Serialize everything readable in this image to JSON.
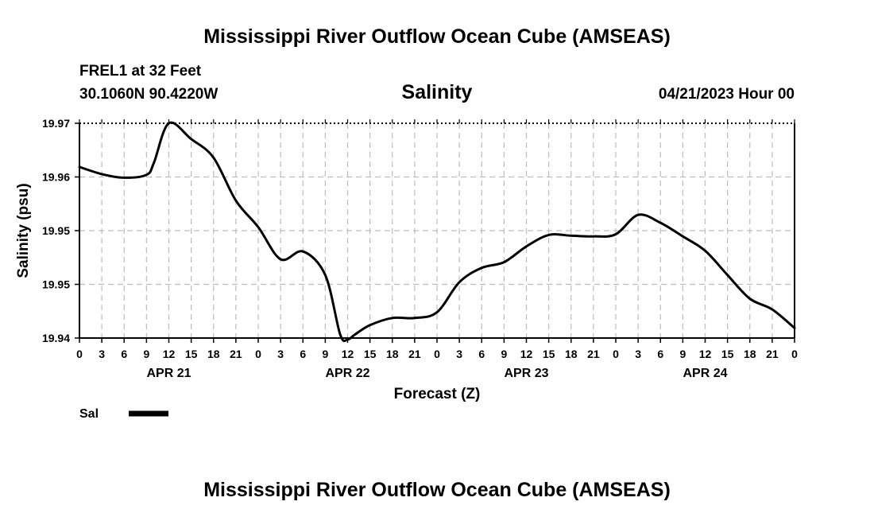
{
  "header": {
    "title": "Mississippi River Outflow Ocean Cube (AMSEAS)",
    "station_line": "FREL1 at 32 Feet",
    "location_line": "30.1060N  90.4220W",
    "variable_title": "Salinity",
    "datetime_line": "04/21/2023 Hour 00"
  },
  "footer": {
    "repeated_title": "Mississippi River Outflow Ocean Cube (AMSEAS)"
  },
  "legend": {
    "label": "Sal"
  },
  "colors": {
    "line": "#000000",
    "grid": "#bdbdbd",
    "frame": "#000000"
  },
  "chart_data": {
    "type": "line",
    "title": "Salinity",
    "xlabel": "Forecast (Z)",
    "ylabel": "Salinity (psu)",
    "x_ticks": [
      "0",
      "3",
      "6",
      "9",
      "12",
      "15",
      "18",
      "21",
      "0",
      "3",
      "6",
      "9",
      "12",
      "15",
      "18",
      "21",
      "0",
      "3",
      "6",
      "9",
      "12",
      "15",
      "18",
      "21",
      "0",
      "3",
      "6",
      "9",
      "12",
      "15",
      "18",
      "21",
      "0"
    ],
    "day_labels": [
      "APR 21",
      "APR 22",
      "APR 23",
      "APR 24"
    ],
    "day_label_hours": [
      12,
      36,
      60,
      84
    ],
    "y_tick_labels": [
      "19.97",
      "19.96",
      "19.95",
      "19.95",
      "19.94"
    ],
    "ylim": [
      19.94,
      19.97
    ],
    "grid": true,
    "x_hours": [
      0,
      3,
      6,
      9,
      10,
      12,
      15,
      18,
      21,
      24,
      27,
      30,
      33,
      35,
      36,
      37,
      39,
      42,
      45,
      48,
      51,
      54,
      57,
      60,
      63,
      66,
      69,
      72,
      75,
      78,
      81,
      84,
      87,
      90,
      93,
      96
    ],
    "series": [
      {
        "name": "Sal",
        "values": [
          19.9639,
          19.9629,
          19.9624,
          19.9628,
          19.9645,
          19.97,
          19.9678,
          19.9652,
          19.9592,
          19.9555,
          19.951,
          19.9521,
          19.9488,
          19.9405,
          19.9398,
          19.9405,
          19.9418,
          19.9428,
          19.9428,
          19.9436,
          19.9478,
          19.9498,
          19.9506,
          19.9528,
          19.9544,
          19.9543,
          19.9542,
          19.9545,
          19.9572,
          19.9561,
          19.9542,
          19.9522,
          19.9488,
          19.9455,
          19.944,
          19.9414
        ]
      }
    ]
  }
}
